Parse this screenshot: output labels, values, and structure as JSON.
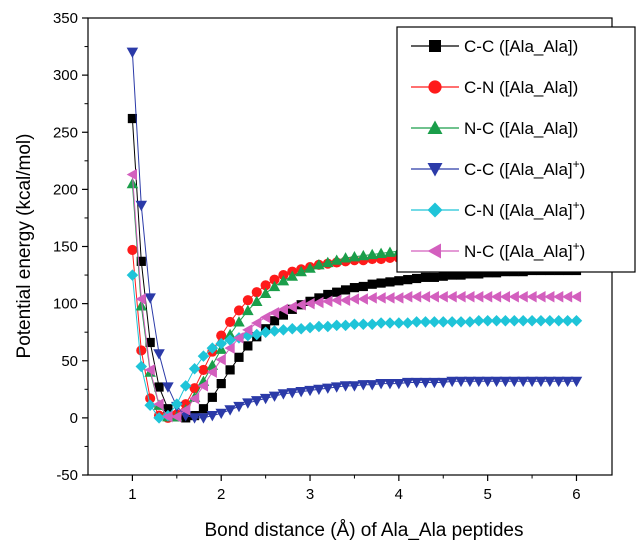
{
  "chart_data": {
    "type": "line",
    "title": "",
    "xlabel": "Bond distance (Å) of Ala_Ala peptides",
    "ylabel": "Potential energy (kcal/mol)",
    "xlim": [
      0.5,
      6.4
    ],
    "ylim": [
      -50,
      350
    ],
    "xticks": [
      1,
      2,
      3,
      4,
      5,
      6
    ],
    "yticks": [
      -50,
      0,
      50,
      100,
      150,
      200,
      250,
      300,
      350
    ],
    "grid": false,
    "legend_position": "top-right",
    "series": [
      {
        "name": "C-C ([Ala_Ala])",
        "legend_main": "C-C ([Ala_Ala]",
        "legend_sup": "",
        "legend_tail": ")",
        "color": "#000000",
        "marker": "square",
        "x0": 1.0,
        "dx": 0.1,
        "values": [
          262,
          137,
          66,
          27,
          8,
          1,
          0,
          2,
          8,
          18,
          30,
          42,
          53,
          63,
          71,
          78,
          85,
          90,
          95,
          99,
          102,
          105,
          108,
          110,
          112,
          114,
          115,
          117,
          118,
          119,
          120,
          121,
          122,
          123,
          123,
          124,
          125,
          125,
          126,
          126,
          127,
          127,
          128,
          128,
          128,
          129,
          129,
          129,
          129,
          129,
          129
        ]
      },
      {
        "name": "C-N ([Ala_Ala])",
        "legend_main": "C-N ([Ala_Ala]",
        "legend_sup": "",
        "legend_tail": ")",
        "color": "#ff1a1a",
        "marker": "circle",
        "x0": 1.0,
        "dx": 0.1,
        "values": [
          147,
          59,
          17,
          2,
          0,
          3,
          12,
          26,
          42,
          58,
          72,
          84,
          94,
          103,
          110,
          116,
          121,
          125,
          128,
          130,
          132,
          134,
          135,
          136,
          137,
          138,
          138,
          139,
          139,
          140,
          140,
          140,
          141,
          141,
          141,
          141,
          141,
          141,
          141,
          141,
          141,
          141,
          141,
          141,
          141,
          141,
          141,
          141,
          141,
          141,
          141
        ]
      },
      {
        "name": "N-C ([Ala_Ala])",
        "legend_main": "N-C ([Ala_Ala]",
        "legend_sup": "",
        "legend_tail": ")",
        "color": "#1a9e4a",
        "marker": "triangle-up",
        "x0": 1.0,
        "dx": 0.1,
        "values": [
          205,
          98,
          40,
          11,
          1,
          1,
          7,
          18,
          32,
          46,
          60,
          73,
          84,
          94,
          102,
          109,
          115,
          120,
          124,
          128,
          131,
          134,
          136,
          138,
          140,
          141,
          142,
          143,
          144,
          145,
          146,
          146,
          147,
          147,
          148,
          148,
          148,
          149,
          149,
          149,
          149,
          150,
          150,
          150,
          150,
          150,
          150,
          150,
          150,
          150,
          150
        ]
      },
      {
        "name": "C-C ([Ala_Ala]+)",
        "legend_main": "C-C ([Ala_Ala]",
        "legend_sup": "+",
        "legend_tail": ")",
        "color": "#2b3aa8",
        "marker": "triangle-down",
        "x0": 1.0,
        "dx": 0.1,
        "values": [
          320,
          186,
          105,
          56,
          27,
          10,
          2,
          0,
          0,
          2,
          4,
          7,
          10,
          13,
          15,
          17,
          19,
          21,
          22,
          23,
          24,
          25,
          26,
          27,
          28,
          28,
          29,
          29,
          30,
          30,
          30,
          31,
          31,
          31,
          31,
          31,
          32,
          32,
          32,
          32,
          32,
          32,
          32,
          32,
          32,
          32,
          32,
          32,
          32,
          32,
          32
        ]
      },
      {
        "name": "C-N ([Ala_Ala]+)",
        "legend_main": "C-N ([Ala_Ala]",
        "legend_sup": "+",
        "legend_tail": ")",
        "color": "#1fc4d8",
        "marker": "diamond",
        "x0": 1.0,
        "dx": 0.1,
        "values": [
          125,
          45,
          11,
          0,
          2,
          12,
          28,
          43,
          54,
          61,
          65,
          68,
          70,
          72,
          73,
          75,
          76,
          77,
          78,
          78,
          79,
          80,
          80,
          81,
          81,
          82,
          82,
          82,
          83,
          83,
          83,
          83,
          84,
          84,
          84,
          84,
          84,
          84,
          84,
          85,
          85,
          85,
          85,
          85,
          85,
          85,
          85,
          85,
          85,
          85,
          85
        ]
      },
      {
        "name": "N-C ([Ala_Ala]+)",
        "legend_main": "N-C ([Ala_Ala]",
        "legend_sup": "+",
        "legend_tail": ")",
        "color": "#d35fbe",
        "marker": "triangle-left",
        "x0": 1.0,
        "dx": 0.1,
        "values": [
          213,
          104,
          42,
          12,
          1,
          1,
          7,
          17,
          28,
          40,
          51,
          61,
          70,
          77,
          83,
          88,
          92,
          95,
          97,
          99,
          100,
          101,
          102,
          103,
          103,
          104,
          104,
          105,
          105,
          105,
          105,
          106,
          106,
          106,
          106,
          106,
          106,
          106,
          106,
          106,
          106,
          106,
          106,
          106,
          106,
          106,
          106,
          106,
          106,
          106,
          106
        ]
      }
    ]
  }
}
